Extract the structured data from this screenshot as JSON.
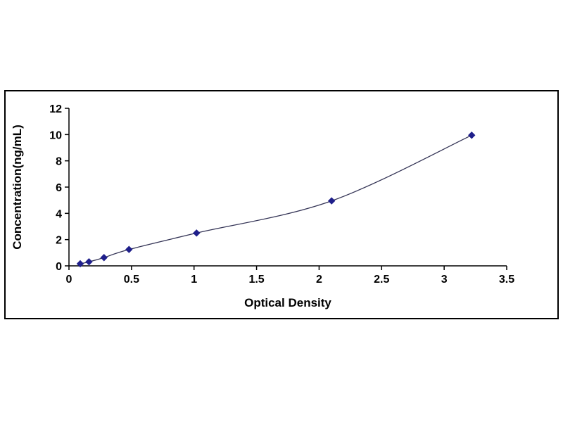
{
  "chart_data": {
    "type": "line",
    "title": "",
    "xlabel": "Optical Density",
    "ylabel": "Concentration(ng/mL)",
    "x": [
      0.09,
      0.16,
      0.28,
      0.48,
      1.02,
      2.1,
      3.22
    ],
    "y": [
      0.16,
      0.31,
      0.63,
      1.25,
      2.5,
      4.95,
      9.95
    ],
    "xlim": [
      0,
      3.5
    ],
    "ylim": [
      0,
      12
    ],
    "xticks": [
      0,
      0.5,
      1,
      1.5,
      2,
      2.5,
      3,
      3.5
    ],
    "yticks": [
      0,
      2,
      4,
      6,
      8,
      10,
      12
    ],
    "marker": "diamond",
    "marker_color": "#1F1F8B",
    "line_color": "#333355",
    "axis_color": "#000000",
    "grid": false,
    "legend": "none"
  }
}
